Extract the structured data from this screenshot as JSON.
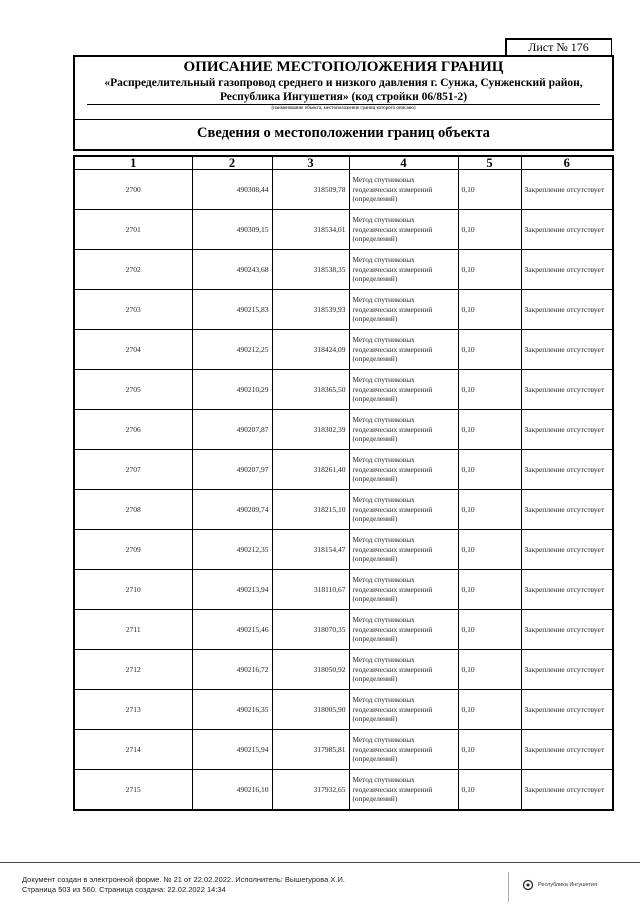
{
  "sheet_label": "Лист № 176",
  "title": "ОПИСАНИЕ МЕСТОПОЛОЖЕНИЯ ГРАНИЦ",
  "object_line1": "«Распределительный газопровод среднего и низкого давления г. Сунжа, Сунженский район,",
  "object_line2": "Республика Ингушетия» (код стройки 06/851-2)",
  "object_note": "(наименование объекта, местоположение границ которого описано)",
  "section_title": "Сведения о местоположении границ объекта",
  "table": {
    "headers": [
      "1",
      "2",
      "3",
      "4",
      "5",
      "6"
    ],
    "method": "Метод спутниковых геодезических измерений (определений)",
    "accuracy": "0,10",
    "marker": "Закрепление отсутствует",
    "rows": [
      [
        "2700",
        "490308,44",
        "318509,78"
      ],
      [
        "2701",
        "490309,15",
        "318534,01"
      ],
      [
        "2702",
        "490243,68",
        "318538,35"
      ],
      [
        "2703",
        "490215,83",
        "318539,93"
      ],
      [
        "2704",
        "490212,25",
        "318424,09"
      ],
      [
        "2705",
        "490210,29",
        "318365,50"
      ],
      [
        "2706",
        "490207,87",
        "318302,39"
      ],
      [
        "2707",
        "490207,97",
        "318261,40"
      ],
      [
        "2708",
        "490209,74",
        "318215,10"
      ],
      [
        "2709",
        "490212,35",
        "318154,47"
      ],
      [
        "2710",
        "490213,94",
        "318110,67"
      ],
      [
        "2711",
        "490215,46",
        "318070,35"
      ],
      [
        "2712",
        "490216,72",
        "318050,92"
      ],
      [
        "2713",
        "490216,35",
        "318005,90"
      ],
      [
        "2714",
        "490215,94",
        "317985,81"
      ],
      [
        "2715",
        "490216,10",
        "317932,65"
      ]
    ]
  },
  "footer": {
    "line1": "Документ создан в электронной форме. № 21 от 22.02.2022. Исполнитель: Вышегурова Х.И.",
    "line2": "Страница 503 из 560. Страница создана: 22.02.2022 14:34",
    "logo_text": "Республика Ингушетия"
  }
}
